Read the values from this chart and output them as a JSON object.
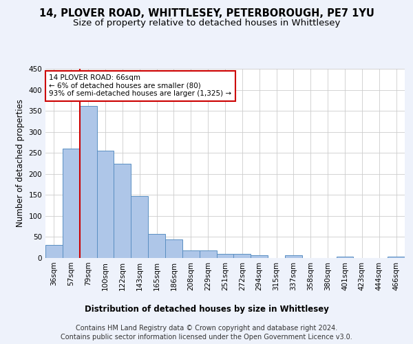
{
  "title": "14, PLOVER ROAD, WHITTLESEY, PETERBOROUGH, PE7 1YU",
  "subtitle": "Size of property relative to detached houses in Whittlesey",
  "xlabel": "Distribution of detached houses by size in Whittlesey",
  "ylabel": "Number of detached properties",
  "categories": [
    "36sqm",
    "57sqm",
    "79sqm",
    "100sqm",
    "122sqm",
    "143sqm",
    "165sqm",
    "186sqm",
    "208sqm",
    "229sqm",
    "251sqm",
    "272sqm",
    "294sqm",
    "315sqm",
    "337sqm",
    "358sqm",
    "380sqm",
    "401sqm",
    "423sqm",
    "444sqm",
    "466sqm"
  ],
  "values": [
    31,
    260,
    362,
    255,
    225,
    148,
    57,
    45,
    18,
    18,
    10,
    10,
    7,
    0,
    6,
    0,
    0,
    4,
    0,
    0,
    4
  ],
  "bar_color": "#aec6e8",
  "bar_edge_color": "#5a8fc2",
  "vline_x_index": 1.5,
  "vline_color": "#cc0000",
  "annotation_text": "14 PLOVER ROAD: 66sqm\n← 6% of detached houses are smaller (80)\n93% of semi-detached houses are larger (1,325) →",
  "annotation_box_color": "#cc0000",
  "ylim": [
    0,
    450
  ],
  "yticks": [
    0,
    50,
    100,
    150,
    200,
    250,
    300,
    350,
    400,
    450
  ],
  "footer_line1": "Contains HM Land Registry data © Crown copyright and database right 2024.",
  "footer_line2": "Contains public sector information licensed under the Open Government Licence v3.0.",
  "bg_color": "#eef2fb",
  "plot_bg_color": "#ffffff",
  "grid_color": "#cccccc",
  "title_fontsize": 10.5,
  "subtitle_fontsize": 9.5,
  "axis_label_fontsize": 8.5,
  "tick_fontsize": 7.5,
  "footer_fontsize": 7,
  "annotation_fontsize": 7.5
}
